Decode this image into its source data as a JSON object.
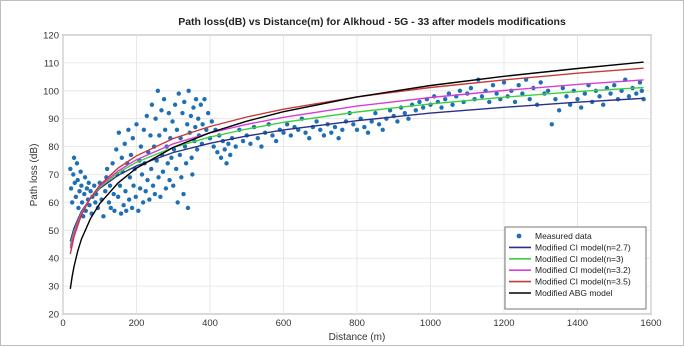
{
  "chart_data": {
    "type": "scatter",
    "title": "Path loss(dB) vs Distance(m) for Alkhoud - 5G - 33 after models modifications",
    "xlabel": "Distance (m)",
    "ylabel": "Path loss (dB)",
    "xlim": [
      0,
      1600
    ],
    "ylim": [
      20,
      120
    ],
    "xticks": [
      0,
      200,
      400,
      600,
      800,
      1000,
      1200,
      1400,
      1600
    ],
    "yticks": [
      20,
      30,
      40,
      50,
      60,
      70,
      80,
      90,
      100,
      110,
      120
    ],
    "grid": true,
    "legend_position": "bottom-right",
    "scatter_series": {
      "name": "Measured data",
      "color": "#1f6fb5",
      "points": [
        [
          20,
          72
        ],
        [
          22,
          65
        ],
        [
          25,
          60
        ],
        [
          28,
          70
        ],
        [
          30,
          76
        ],
        [
          32,
          67
        ],
        [
          35,
          62
        ],
        [
          38,
          74
        ],
        [
          40,
          68
        ],
        [
          42,
          58
        ],
        [
          45,
          64
        ],
        [
          48,
          71
        ],
        [
          50,
          66
        ],
        [
          52,
          60
        ],
        [
          55,
          55
        ],
        [
          58,
          63
        ],
        [
          60,
          69
        ],
        [
          62,
          57
        ],
        [
          65,
          65
        ],
        [
          68,
          61
        ],
        [
          70,
          67
        ],
        [
          72,
          59
        ],
        [
          75,
          64
        ],
        [
          78,
          56
        ],
        [
          80,
          62
        ],
        [
          85,
          66
        ],
        [
          88,
          60
        ],
        [
          90,
          63
        ],
        [
          95,
          58
        ],
        [
          100,
          67
        ],
        [
          105,
          61
        ],
        [
          110,
          55
        ],
        [
          115,
          64
        ],
        [
          118,
          69
        ],
        [
          120,
          72
        ],
        [
          125,
          60
        ],
        [
          128,
          66
        ],
        [
          130,
          58
        ],
        [
          135,
          74
        ],
        [
          138,
          63
        ],
        [
          140,
          57
        ],
        [
          145,
          79
        ],
        [
          148,
          70
        ],
        [
          150,
          62
        ],
        [
          152,
          85
        ],
        [
          155,
          66
        ],
        [
          158,
          56
        ],
        [
          160,
          76
        ],
        [
          162,
          71
        ],
        [
          165,
          59
        ],
        [
          168,
          81
        ],
        [
          170,
          64
        ],
        [
          172,
          57
        ],
        [
          175,
          74
        ],
        [
          178,
          86
        ],
        [
          180,
          61
        ],
        [
          182,
          69
        ],
        [
          185,
          77
        ],
        [
          188,
          58
        ],
        [
          190,
          83
        ],
        [
          192,
          66
        ],
        [
          195,
          72
        ],
        [
          198,
          62
        ],
        [
          200,
          88
        ],
        [
          205,
          57
        ],
        [
          208,
          75
        ],
        [
          210,
          65
        ],
        [
          212,
          80
        ],
        [
          215,
          70
        ],
        [
          218,
          60
        ],
        [
          220,
          86
        ],
        [
          222,
          74
        ],
        [
          225,
          64
        ],
        [
          228,
          91
        ],
        [
          230,
          68
        ],
        [
          232,
          78
        ],
        [
          235,
          61
        ],
        [
          238,
          84
        ],
        [
          240,
          72
        ],
        [
          242,
          95
        ],
        [
          245,
          66
        ],
        [
          248,
          80
        ],
        [
          250,
          63
        ],
        [
          252,
          90
        ],
        [
          255,
          75
        ],
        [
          258,
          100
        ],
        [
          260,
          69
        ],
        [
          262,
          84
        ],
        [
          265,
          62
        ],
        [
          268,
          93
        ],
        [
          270,
          77
        ],
        [
          272,
          71
        ],
        [
          275,
          97
        ],
        [
          278,
          86
        ],
        [
          280,
          65
        ],
        [
          282,
          80
        ],
        [
          285,
          74
        ],
        [
          288,
          92
        ],
        [
          290,
          68
        ],
        [
          292,
          83
        ],
        [
          295,
          76
        ],
        [
          298,
          89
        ],
        [
          300,
          66
        ],
        [
          302,
          79
        ],
        [
          305,
          95
        ],
        [
          308,
          72
        ],
        [
          310,
          86
        ],
        [
          312,
          60
        ],
        [
          315,
          99
        ],
        [
          318,
          77
        ],
        [
          320,
          83
        ],
        [
          322,
          69
        ],
        [
          325,
          92
        ],
        [
          328,
          63
        ],
        [
          330,
          96
        ],
        [
          332,
          80
        ],
        [
          335,
          74
        ],
        [
          338,
          88
        ],
        [
          340,
          58
        ],
        [
          342,
          100
        ],
        [
          345,
          85
        ],
        [
          348,
          91
        ],
        [
          350,
          76
        ],
        [
          352,
          70
        ],
        [
          355,
          94
        ],
        [
          358,
          82
        ],
        [
          360,
          87
        ],
        [
          362,
          97
        ],
        [
          365,
          79
        ],
        [
          368,
          90
        ],
        [
          370,
          84
        ],
        [
          375,
          95
        ],
        [
          378,
          81
        ],
        [
          380,
          88
        ],
        [
          385,
          97
        ],
        [
          390,
          86
        ],
        [
          395,
          92
        ],
        [
          400,
          83
        ],
        [
          405,
          89
        ],
        [
          410,
          80
        ],
        [
          415,
          86
        ],
        [
          420,
          78
        ],
        [
          425,
          84
        ],
        [
          430,
          76
        ],
        [
          435,
          82
        ],
        [
          440,
          79
        ],
        [
          445,
          74
        ],
        [
          450,
          81
        ],
        [
          455,
          77
        ],
        [
          460,
          83
        ],
        [
          470,
          80
        ],
        [
          480,
          86
        ],
        [
          490,
          82
        ],
        [
          500,
          84
        ],
        [
          510,
          81
        ],
        [
          520,
          87
        ],
        [
          530,
          83
        ],
        [
          540,
          80
        ],
        [
          550,
          85
        ],
        [
          560,
          88
        ],
        [
          570,
          84
        ],
        [
          580,
          82
        ],
        [
          590,
          86
        ],
        [
          600,
          85
        ],
        [
          610,
          88
        ],
        [
          620,
          84
        ],
        [
          630,
          87
        ],
        [
          640,
          86
        ],
        [
          650,
          90
        ],
        [
          660,
          85
        ],
        [
          670,
          83
        ],
        [
          680,
          87
        ],
        [
          690,
          89
        ],
        [
          700,
          86
        ],
        [
          710,
          84
        ],
        [
          720,
          88
        ],
        [
          730,
          85
        ],
        [
          740,
          87
        ],
        [
          750,
          83
        ],
        [
          760,
          86
        ],
        [
          770,
          89
        ],
        [
          780,
          92
        ],
        [
          790,
          88
        ],
        [
          800,
          86
        ],
        [
          810,
          90
        ],
        [
          820,
          87
        ],
        [
          830,
          85
        ],
        [
          840,
          89
        ],
        [
          850,
          92
        ],
        [
          860,
          88
        ],
        [
          870,
          86
        ],
        [
          880,
          90
        ],
        [
          890,
          93
        ],
        [
          900,
          91
        ],
        [
          910,
          89
        ],
        [
          920,
          94
        ],
        [
          930,
          92
        ],
        [
          940,
          90
        ],
        [
          950,
          95
        ],
        [
          960,
          93
        ],
        [
          970,
          96
        ],
        [
          980,
          94
        ],
        [
          990,
          97
        ],
        [
          1000,
          95
        ],
        [
          1010,
          98
        ],
        [
          1020,
          96
        ],
        [
          1030,
          94
        ],
        [
          1040,
          97
        ],
        [
          1050,
          99
        ],
        [
          1060,
          95
        ],
        [
          1070,
          98
        ],
        [
          1080,
          100
        ],
        [
          1090,
          96
        ],
        [
          1100,
          99
        ],
        [
          1110,
          101
        ],
        [
          1120,
          97
        ],
        [
          1130,
          104
        ],
        [
          1140,
          98
        ],
        [
          1150,
          100
        ],
        [
          1160,
          96
        ],
        [
          1170,
          102
        ],
        [
          1180,
          99
        ],
        [
          1190,
          97
        ],
        [
          1200,
          103
        ],
        [
          1210,
          98
        ],
        [
          1220,
          100
        ],
        [
          1230,
          96
        ],
        [
          1240,
          102
        ],
        [
          1250,
          99
        ],
        [
          1260,
          104
        ],
        [
          1270,
          97
        ],
        [
          1280,
          101
        ],
        [
          1290,
          95
        ],
        [
          1300,
          103
        ],
        [
          1310,
          99
        ],
        [
          1320,
          100
        ],
        [
          1330,
          88
        ],
        [
          1340,
          97
        ],
        [
          1350,
          93
        ],
        [
          1360,
          101
        ],
        [
          1370,
          98
        ],
        [
          1380,
          95
        ],
        [
          1390,
          100
        ],
        [
          1400,
          97
        ],
        [
          1410,
          94
        ],
        [
          1420,
          99
        ],
        [
          1430,
          102
        ],
        [
          1440,
          96
        ],
        [
          1450,
          100
        ],
        [
          1460,
          98
        ],
        [
          1470,
          95
        ],
        [
          1480,
          101
        ],
        [
          1490,
          99
        ],
        [
          1500,
          102
        ],
        [
          1510,
          97
        ],
        [
          1520,
          100
        ],
        [
          1530,
          104
        ],
        [
          1540,
          98
        ],
        [
          1550,
          101
        ],
        [
          1560,
          99
        ],
        [
          1570,
          103
        ],
        [
          1575,
          100
        ],
        [
          1580,
          97
        ]
      ]
    },
    "series": [
      {
        "name": "Modified CI model(n=2.7)",
        "color": "#2b2f88",
        "x": [
          20,
          30,
          50,
          75,
          100,
          150,
          200,
          300,
          400,
          500,
          600,
          800,
          1000,
          1200,
          1400,
          1580
        ],
        "y": [
          46.0,
          50.8,
          56.8,
          61.5,
          65.0,
          69.7,
          73.1,
          77.9,
          81.2,
          83.8,
          86.0,
          89.3,
          92.0,
          94.1,
          95.9,
          97.3
        ]
      },
      {
        "name": "Modified CI model(n=3)",
        "color": "#3ecf3e",
        "x": [
          20,
          30,
          50,
          75,
          100,
          150,
          200,
          300,
          400,
          500,
          600,
          800,
          1000,
          1200,
          1400,
          1580
        ],
        "y": [
          44.5,
          49.7,
          56.3,
          61.6,
          65.4,
          70.6,
          74.4,
          79.7,
          83.4,
          86.3,
          88.7,
          92.4,
          95.3,
          97.7,
          99.7,
          101.2
        ]
      },
      {
        "name": "Modified CI model(n=3.2)",
        "color": "#d53fd5",
        "x": [
          20,
          30,
          50,
          75,
          100,
          150,
          200,
          300,
          400,
          500,
          600,
          800,
          1000,
          1200,
          1400,
          1580
        ],
        "y": [
          43.5,
          49.1,
          56.1,
          61.7,
          65.8,
          71.3,
          75.3,
          81.0,
          84.9,
          88.0,
          90.5,
          94.5,
          97.6,
          100.1,
          102.3,
          103.9
        ]
      },
      {
        "name": "Modified CI model(n=3.5)",
        "color": "#c73a3a",
        "x": [
          20,
          30,
          50,
          75,
          100,
          150,
          200,
          300,
          400,
          500,
          600,
          800,
          1000,
          1200,
          1400,
          1580
        ],
        "y": [
          41.5,
          47.7,
          55.5,
          61.7,
          66.2,
          72.3,
          76.7,
          82.9,
          87.2,
          90.6,
          93.4,
          97.8,
          101.2,
          103.9,
          106.3,
          108.1
        ]
      },
      {
        "name": "Modified ABG model",
        "color": "#000000",
        "x": [
          20,
          25,
          30,
          40,
          50,
          75,
          100,
          150,
          200,
          300,
          400,
          500,
          600,
          800,
          1000,
          1200,
          1400,
          1580
        ],
        "y": [
          29.0,
          33.5,
          37.0,
          42.5,
          46.8,
          54.3,
          59.6,
          67.0,
          72.3,
          79.7,
          85.0,
          89.1,
          92.5,
          97.8,
          101.9,
          105.2,
          108.0,
          110.3
        ]
      }
    ]
  }
}
